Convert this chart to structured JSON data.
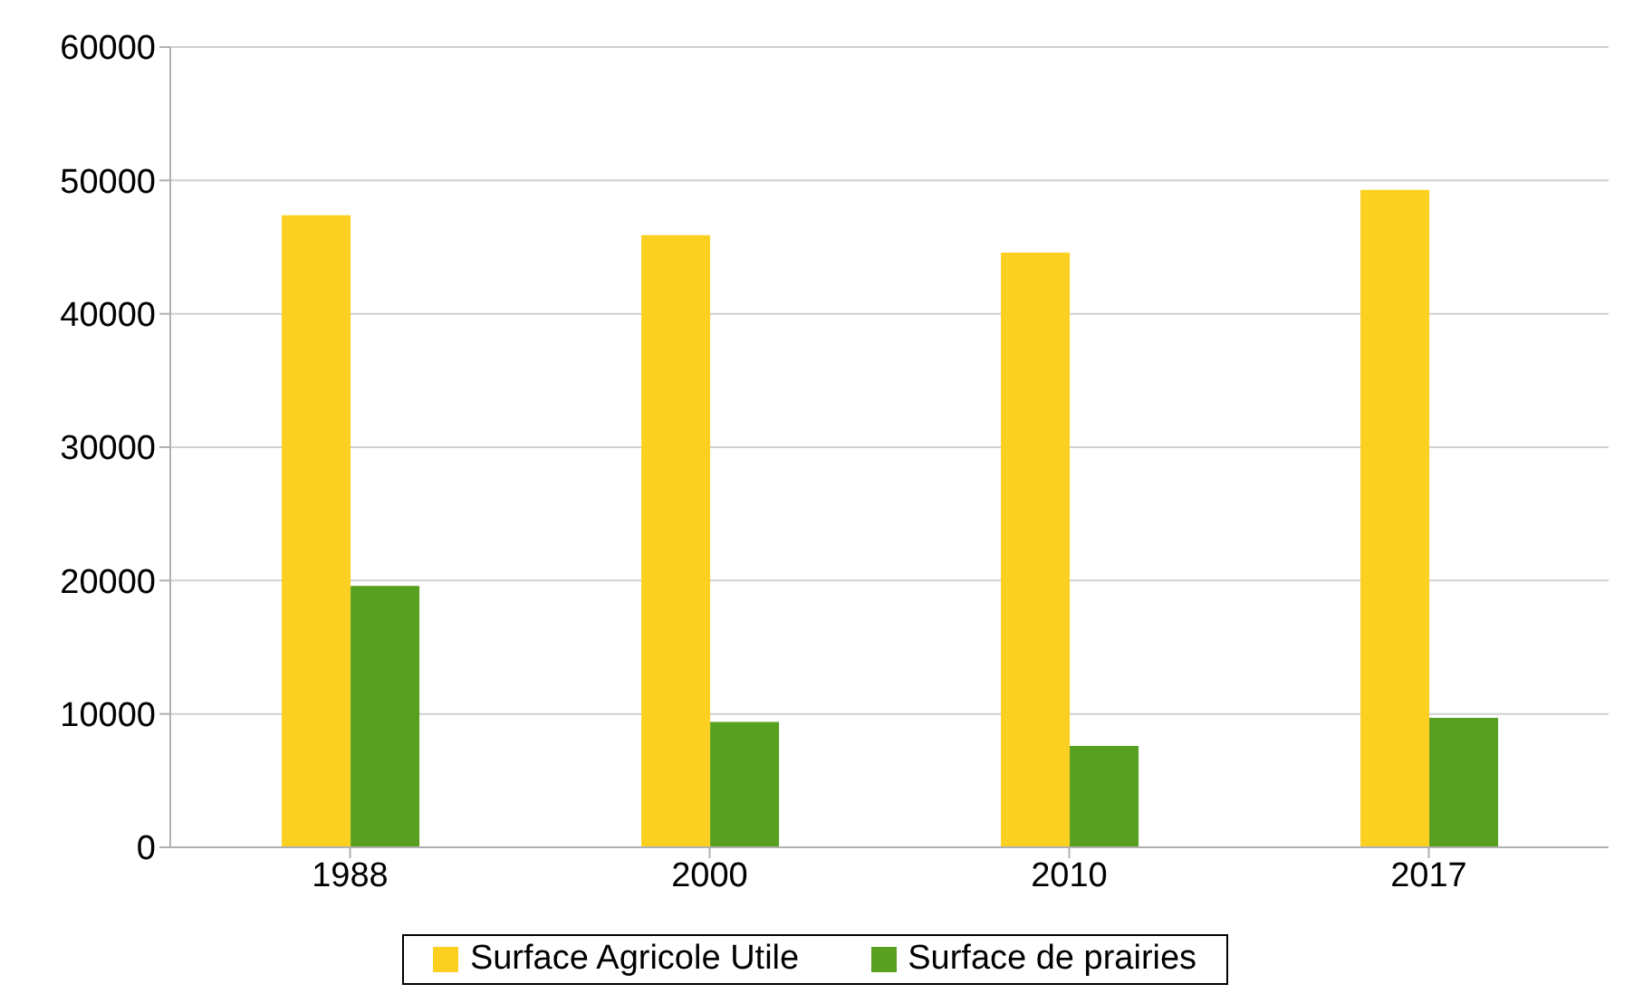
{
  "chart_data": {
    "type": "bar",
    "categories": [
      "1988",
      "2000",
      "2010",
      "2017"
    ],
    "series": [
      {
        "name": "Surface Agricole Utile",
        "color": "#fcd020",
        "values": [
          47400,
          45900,
          44600,
          49300
        ]
      },
      {
        "name": "Surface de prairies",
        "color": "#57a020",
        "values": [
          19600,
          9400,
          7600,
          9700
        ]
      }
    ],
    "ylim": [
      0,
      60000
    ],
    "yticks": [
      0,
      10000,
      20000,
      30000,
      40000,
      50000,
      60000
    ],
    "grid": "y",
    "legend": "bottom"
  }
}
